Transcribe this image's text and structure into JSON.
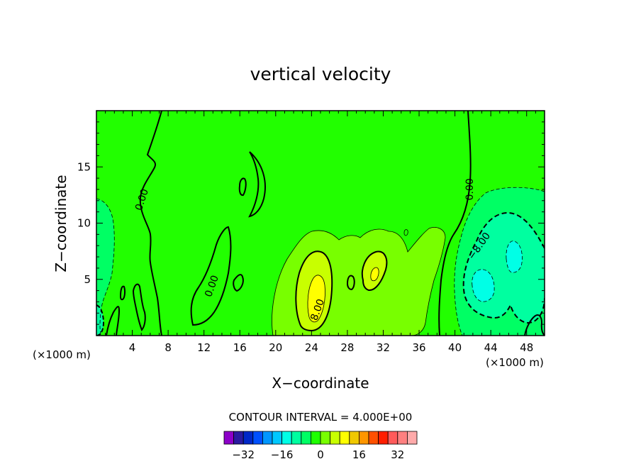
{
  "chart_data": {
    "type": "contour",
    "title": "vertical velocity",
    "xlabel": "X−coordinate",
    "ylabel": "Z−coordinate",
    "x_unit_left": "(×1000 m)",
    "x_unit_right": "(×1000 m)",
    "xlim": [
      0,
      50
    ],
    "ylim": [
      0,
      20
    ],
    "x_ticks": [
      4,
      8,
      12,
      16,
      20,
      24,
      28,
      32,
      36,
      40,
      44,
      48
    ],
    "y_ticks": [
      5,
      10,
      15
    ],
    "contour_interval_text": "CONTOUR INTERVAL = 4.000E+00",
    "contour_labels": [
      {
        "text": "0.00",
        "x": 5.4,
        "y": 12.0,
        "rot": -72
      },
      {
        "text": "0.00",
        "x": 13.2,
        "y": 4.3,
        "rot": -70
      },
      {
        "text": "8.00",
        "x": 25.0,
        "y": 2.2,
        "rot": -70
      },
      {
        "text": "0.00",
        "x": 42.0,
        "y": 13.0,
        "rot": -90
      },
      {
        "text": "−8.00",
        "x": 43.0,
        "y": 7.8,
        "rot": -55
      }
    ],
    "colorbar": {
      "ticks": [
        "−32",
        "−16",
        "0",
        "16",
        "32"
      ],
      "tick_values": [
        -32,
        -16,
        0,
        16,
        32
      ],
      "min": -40,
      "max": 40,
      "colors": [
        "#8c00c8",
        "#2a1aa0",
        "#0028c8",
        "#0050ff",
        "#0096ff",
        "#00c8ff",
        "#00ffe6",
        "#00ffa0",
        "#00ff64",
        "#1eff00",
        "#78ff00",
        "#c8ff00",
        "#ffff00",
        "#f0c800",
        "#ff9600",
        "#ff5000",
        "#ff1e00",
        "#ff5a5a",
        "#ff8080",
        "#ffaaaa"
      ]
    },
    "fill_colors": {
      "background": "#22ff00",
      "level_minus_4": "#00ff64",
      "level_minus_8": "#00ffa0",
      "level_minus_12": "#00ffe6",
      "level_4": "#78ff00",
      "level_8": "#c8ff00",
      "level_12": "#ffff00"
    }
  }
}
